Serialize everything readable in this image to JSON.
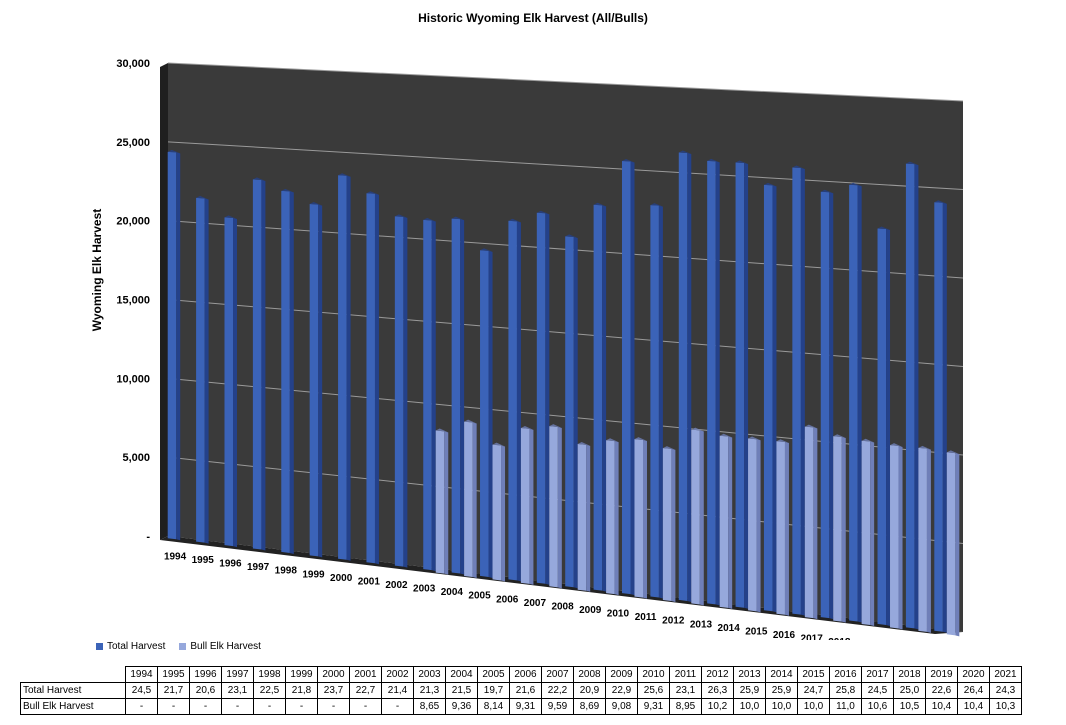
{
  "chart_data": {
    "type": "bar",
    "title": "Historic Wyoming Elk Harvest (All/Bulls)",
    "ylabel": "Wyoming Elk Harvest",
    "ylim": [
      0,
      30000
    ],
    "yticks": [
      "-",
      "5,000",
      "10,000",
      "15,000",
      "20,000",
      "25,000",
      "30,000"
    ],
    "categories": [
      "1994",
      "1995",
      "1996",
      "1997",
      "1998",
      "1999",
      "2000",
      "2001",
      "2002",
      "2003",
      "2004",
      "2005",
      "2006",
      "2007",
      "2008",
      "2009",
      "2010",
      "2011",
      "2012",
      "2013",
      "2014",
      "2015",
      "2016",
      "2017",
      "2018",
      "2019",
      "2020",
      "2021"
    ],
    "grid": true,
    "legend": "bottom-left",
    "series": [
      {
        "name": "Total Harvest",
        "color": "#3b63b8",
        "values": [
          24500,
          21700,
          20600,
          23100,
          22500,
          21800,
          23700,
          22700,
          21400,
          21300,
          21500,
          19700,
          21600,
          22200,
          20900,
          22900,
          25600,
          23100,
          26300,
          25900,
          25900,
          24700,
          25800,
          24500,
          25000,
          22600,
          26400,
          24300
        ],
        "labels": [
          "24,5",
          "21,7",
          "20,6",
          "23,1",
          "22,5",
          "21,8",
          "23,7",
          "22,7",
          "21,4",
          "21,3",
          "21,5",
          "19,7",
          "21,6",
          "22,2",
          "20,9",
          "22,9",
          "25,6",
          "23,1",
          "26,3",
          "25,9",
          "25,9",
          "24,7",
          "25,8",
          "24,5",
          "25,0",
          "22,6",
          "26,4",
          "24,3"
        ]
      },
      {
        "name": "Bull Elk Harvest",
        "color": "#96a8dc",
        "values": [
          null,
          null,
          null,
          null,
          null,
          null,
          null,
          null,
          null,
          8650,
          9360,
          8140,
          9310,
          9590,
          8690,
          9080,
          9310,
          8950,
          10200,
          10000,
          10000,
          10000,
          11000,
          10600,
          10500,
          10400,
          10400,
          10300
        ],
        "labels": [
          "-",
          "-",
          "-",
          "-",
          "-",
          "-",
          "-",
          "-",
          "-",
          "8,65",
          "9,36",
          "8,14",
          "9,31",
          "9,59",
          "8,69",
          "9,08",
          "9,31",
          "8,95",
          "10,2",
          "10,0",
          "10,0",
          "10,0",
          "11,0",
          "10,6",
          "10,5",
          "10,4",
          "10,4",
          "10,3"
        ]
      }
    ]
  }
}
